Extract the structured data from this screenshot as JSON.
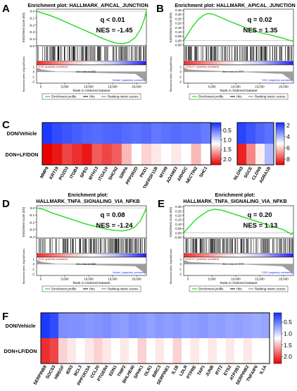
{
  "panels": {
    "A": {
      "letter": "A",
      "title_lines": [
        "Enrichment plot: HALLMARK_APICAL_JUNCTION"
      ],
      "q_text": "q < 0.01",
      "nes_text": "NES = -1.45",
      "es_ylabel": "Enrichment score (ES)",
      "es_ticks": [
        "0.0",
        "-0.1",
        "-0.2",
        "-0.3",
        "-0.4",
        "-0.5"
      ],
      "rank_ylabel": "Ranked list metric (Signal2Noise)",
      "rank_ticks": [
        "1",
        "0",
        "-1",
        "-2"
      ],
      "left_tag": "'DON' (positively correlated)",
      "right_tag": "'Vehicle' (negatively correlated)",
      "zero_cross": "Zero cross at 4520",
      "x_ticks": [
        "0",
        "5,000",
        "10,000",
        "15,000",
        "20,000"
      ],
      "x_label": "Rank in Ordered Dataset",
      "legend": [
        "Enrichment profile",
        "Hits",
        "Ranking metric scores"
      ],
      "es_curve": [
        [
          0,
          0
        ],
        [
          0.06,
          -0.03
        ],
        [
          0.12,
          -0.06
        ],
        [
          0.2,
          -0.11
        ],
        [
          0.3,
          -0.18
        ],
        [
          0.4,
          -0.25
        ],
        [
          0.5,
          -0.32
        ],
        [
          0.58,
          -0.38
        ],
        [
          0.66,
          -0.43
        ],
        [
          0.72,
          -0.46
        ],
        [
          0.78,
          -0.47
        ],
        [
          0.84,
          -0.45
        ],
        [
          0.9,
          -0.38
        ],
        [
          0.95,
          -0.25
        ],
        [
          0.98,
          -0.12
        ],
        [
          1.0,
          0
        ]
      ],
      "es_range": [
        -0.5,
        0.03
      ],
      "hit_density": "right"
    },
    "B": {
      "letter": "B",
      "title_lines": [
        "Enrichment plot: HALLMARK_APICAL_JUNCTION"
      ],
      "q_text": "q = 0.02",
      "nes_text": "NES = 1.35",
      "es_ylabel": "Enrichment score (ES)",
      "es_ticks": [
        "0.35",
        "0.30",
        "0.25",
        "0.20",
        "0.15",
        "0.10",
        "0.05",
        "0.00",
        "-0.05"
      ],
      "rank_ylabel": "Ranked list metric (Signal2Noise)",
      "rank_ticks": [
        "1",
        "0",
        "-1",
        "-2"
      ],
      "left_tag": "'DON+LF' (positively correlated)",
      "right_tag": "'DON' (negatively correlated)",
      "zero_cross": "Zero cross at 10979",
      "x_ticks": [
        "0",
        "5,000",
        "10,000",
        "15,000",
        "20,000"
      ],
      "x_label": "Rank in Ordered Dataset",
      "legend": [
        "Enrichment profile",
        "Hits",
        "Ranking metric scores"
      ],
      "es_curve": [
        [
          0,
          0
        ],
        [
          0.04,
          0.08
        ],
        [
          0.08,
          0.16
        ],
        [
          0.13,
          0.24
        ],
        [
          0.18,
          0.29
        ],
        [
          0.22,
          0.31
        ],
        [
          0.27,
          0.3
        ],
        [
          0.33,
          0.27
        ],
        [
          0.4,
          0.23
        ],
        [
          0.5,
          0.18
        ],
        [
          0.6,
          0.13
        ],
        [
          0.7,
          0.09
        ],
        [
          0.8,
          0.06
        ],
        [
          0.9,
          0.03
        ],
        [
          0.96,
          0.005
        ],
        [
          1.0,
          -0.01
        ]
      ],
      "es_range": [
        -0.06,
        0.36
      ],
      "hit_density": "left"
    },
    "D": {
      "letter": "D",
      "title_lines": [
        "Enrichment plot:",
        "HALLMARK_TNFA_SIGNALING_VIA_NFKB"
      ],
      "q_text": "q = 0.08",
      "nes_text": "NES = -1.24",
      "es_ylabel": "Enrichment score (ES)",
      "es_ticks": [
        "0.0",
        "-0.1",
        "-0.2",
        "-0.3",
        "-0.4"
      ],
      "rank_ylabel": "Ranked list metric (Signal2Noise)",
      "rank_ticks": [
        "1",
        "0",
        "-1",
        "-2"
      ],
      "left_tag": "'DON' (positively correlated)",
      "right_tag": "'Vehicle' (negatively correlated)",
      "zero_cross": "Zero cross at 4520",
      "x_ticks": [
        "0",
        "5,000",
        "10,000",
        "15,000",
        "20,000"
      ],
      "x_label": "Rank in Ordered Dataset",
      "legend": [
        "Enrichment profile",
        "Hits",
        "Ranking metric scores"
      ],
      "es_curve": [
        [
          0,
          0
        ],
        [
          0.06,
          -0.02
        ],
        [
          0.14,
          -0.07
        ],
        [
          0.24,
          -0.12
        ],
        [
          0.34,
          -0.17
        ],
        [
          0.44,
          -0.22
        ],
        [
          0.54,
          -0.26
        ],
        [
          0.62,
          -0.29
        ],
        [
          0.7,
          -0.31
        ],
        [
          0.78,
          -0.32
        ],
        [
          0.85,
          -0.3
        ],
        [
          0.9,
          -0.26
        ],
        [
          0.95,
          -0.17
        ],
        [
          0.98,
          -0.07
        ],
        [
          1.0,
          0
        ]
      ],
      "es_range": [
        -0.42,
        0.03
      ],
      "hit_density": "right"
    },
    "E": {
      "letter": "E",
      "title_lines": [
        "Enrichment plot:",
        "HALLMARK_TNFA_SIGNALING_VIA_NFKB"
      ],
      "q_text": "q = 0.20",
      "nes_text": "NES = 1.13",
      "es_ylabel": "Enrichment score (ES)",
      "es_ticks": [
        "0.30",
        "0.25",
        "0.20",
        "0.15",
        "0.10",
        "0.05",
        "0.00",
        "-0.05"
      ],
      "rank_ylabel": "Ranked list metric (Signal2Noise)",
      "rank_ticks": [
        "1",
        "0",
        "-1",
        "-2"
      ],
      "left_tag": "'DON+LF' (positively correlated)",
      "right_tag": "'DON' (negatively correlated)",
      "zero_cross": "Zero cross at 10979",
      "x_ticks": [
        "0",
        "5,000",
        "10,000",
        "15,000",
        "20,000"
      ],
      "x_label": "Rank in Ordered Dataset",
      "legend": [
        "Enrichment profile",
        "Hits",
        "Ranking metric scores"
      ],
      "es_curve": [
        [
          0,
          0
        ],
        [
          0.05,
          0.07
        ],
        [
          0.1,
          0.14
        ],
        [
          0.16,
          0.2
        ],
        [
          0.22,
          0.25
        ],
        [
          0.28,
          0.27
        ],
        [
          0.34,
          0.26
        ],
        [
          0.42,
          0.23
        ],
        [
          0.52,
          0.19
        ],
        [
          0.62,
          0.15
        ],
        [
          0.72,
          0.11
        ],
        [
          0.82,
          0.07
        ],
        [
          0.9,
          0.04
        ],
        [
          0.96,
          0.0
        ],
        [
          0.98,
          -0.02
        ],
        [
          1.0,
          0.01
        ]
      ],
      "es_range": [
        -0.06,
        0.31
      ],
      "hit_density": "uniform"
    }
  },
  "heatmaps": {
    "C_left": {
      "rows": [
        "DON/Vehicle",
        "DON+LF/DON"
      ],
      "cols": [
        "MMP9",
        "KRT19",
        "POZD3",
        "ITGB4",
        "SPEG",
        "MYH13",
        "ITGA10",
        "SHCN2",
        "SIRPA",
        "PPP2R2D",
        "PKD1",
        "TNFRSF11B",
        "MYH9",
        "ADAM23",
        "ARHGC",
        "NECTIN2",
        "SHC1"
      ],
      "values": [
        [
          0.15,
          0.25,
          0.3,
          0.35,
          0.4,
          0.42,
          0.4,
          0.38,
          0.42,
          0.45,
          0.42,
          0.48,
          0.45,
          0.42,
          0.45,
          0.44,
          0.5
        ],
        [
          2.3,
          2.2,
          2.0,
          2.1,
          2.2,
          1.9,
          2.0,
          1.9,
          1.5,
          1.2,
          1.4,
          1.3,
          1.2,
          1.3,
          1.2,
          1.5,
          1.2
        ]
      ]
    },
    "C_right": {
      "rows": [
        "DON/Vehicle",
        "DON+LF/DON"
      ],
      "cols": [
        "NLGN3",
        "SGCE",
        "CLDN9",
        "ADRA1B"
      ],
      "values": [
        [
          1.9,
          2.2,
          2.5,
          2.7
        ],
        [
          8.5,
          7.0,
          5.5,
          4.0
        ]
      ]
    },
    "F": {
      "rows": [
        "DON/Vehicle",
        "DON+LF/DON"
      ],
      "cols": [
        "SERPINB8",
        "SOCS3",
        "HBEGF",
        "IER3",
        "BCL3",
        "PPP1R15A",
        "CCL20",
        "PTGER4",
        "EDN1",
        "TNIP2",
        "BHLHE40",
        "SPHK1",
        "OLR1",
        "BIRC3",
        "SERPINE1",
        "IL1B",
        "LDLR",
        "PTPRE",
        "TAP1",
        "JUNB",
        "IFIT2",
        "ETS2",
        "ATP2B1",
        "SERPINB2",
        "TNFAIP6",
        "IL1A"
      ],
      "values": [
        [
          0.15,
          0.25,
          0.6,
          0.62,
          0.62,
          0.65,
          0.63,
          0.6,
          0.65,
          0.68,
          0.62,
          0.65,
          0.7,
          0.65,
          0.68,
          0.65,
          0.7,
          0.68,
          0.65,
          0.7,
          0.68,
          0.72,
          0.7,
          0.72,
          0.75,
          0.72
        ],
        [
          2.1,
          2.0,
          1.4,
          1.3,
          1.2,
          1.3,
          1.4,
          1.3,
          1.2,
          1.3,
          1.2,
          1.4,
          1.2,
          1.3,
          1.2,
          1.4,
          1.2,
          1.3,
          1.2,
          1.3,
          1.2,
          1.3,
          1.2,
          1.3,
          1.2,
          1.2
        ]
      ]
    }
  },
  "colorbars": {
    "C_left": {
      "ticks": [
        "0.5",
        "1.0",
        "1.5",
        "2.0"
      ],
      "min": 0.1,
      "max": 2.3
    },
    "C_right": {
      "ticks": [
        "2",
        "4",
        "6",
        "8"
      ],
      "min": 1.5,
      "max": 9.0
    },
    "F": {
      "ticks": [
        "0.5",
        "1.0",
        "1.5",
        "2.0"
      ],
      "min": 0.1,
      "max": 2.3
    }
  },
  "panel_letters": {
    "C": "C",
    "F": "F"
  },
  "colors": {
    "es_line": "#22dd22",
    "hits": "#000000",
    "rank_fill": "#9e9e9e",
    "heat_low": "#1030ff",
    "heat_mid": "#ffffff",
    "heat_high": "#e80000"
  }
}
